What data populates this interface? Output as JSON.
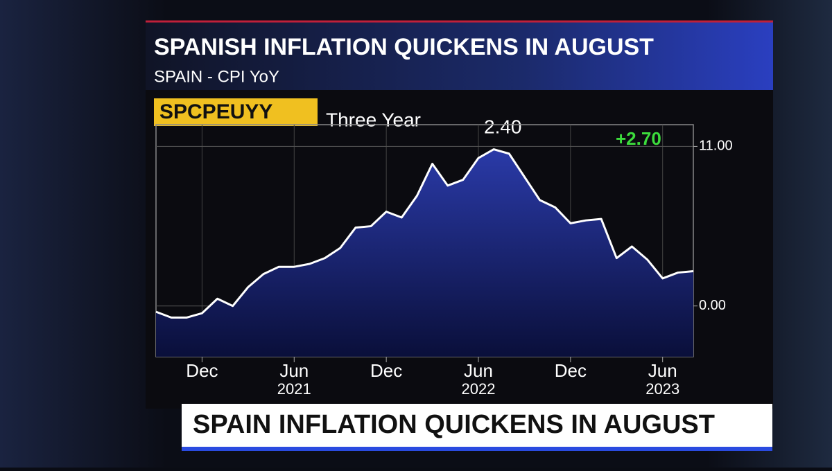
{
  "chart_data": {
    "type": "area",
    "title": "SPANISH INFLATION QUICKENS IN AUGUST",
    "subtitle": "SPAIN - CPI YoY",
    "ticker": "SPCPEUYY",
    "period": "Three Year",
    "last_value": "2.40",
    "change": "+2.70",
    "categories": [
      null,
      null,
      null,
      "Dec",
      null,
      null,
      null,
      null,
      null,
      "Jun",
      null,
      null,
      null,
      null,
      null,
      "Dec",
      null,
      null,
      null,
      null,
      null,
      "Jun",
      null,
      null,
      null,
      null,
      null,
      "Dec",
      null,
      null,
      null,
      null,
      null,
      "Jun",
      null,
      null
    ],
    "category_years": [
      null,
      null,
      null,
      null,
      null,
      null,
      null,
      null,
      null,
      "2021",
      null,
      null,
      null,
      null,
      null,
      null,
      null,
      null,
      null,
      null,
      null,
      "2022",
      null,
      null,
      null,
      null,
      null,
      null,
      null,
      null,
      null,
      null,
      null,
      "2023",
      null,
      null
    ],
    "values": [
      -0.4,
      -0.8,
      -0.8,
      -0.5,
      0.5,
      0.0,
      1.3,
      2.2,
      2.7,
      2.7,
      2.9,
      3.3,
      4.0,
      5.4,
      5.5,
      6.5,
      6.1,
      7.6,
      9.8,
      8.3,
      8.7,
      10.2,
      10.8,
      10.5,
      8.9,
      7.3,
      6.8,
      5.7,
      5.9,
      6.0,
      3.3,
      4.1,
      3.2,
      1.9,
      2.3,
      2.4
    ],
    "color": "#ffffff",
    "ylim": [
      -3.5,
      12.5
    ],
    "yticks": [
      {
        "value": 11,
        "label": "11.00"
      },
      {
        "value": 0,
        "label": "0.00"
      }
    ],
    "grid": true
  },
  "banner": "SPAIN INFLATION QUICKENS IN AUGUST"
}
